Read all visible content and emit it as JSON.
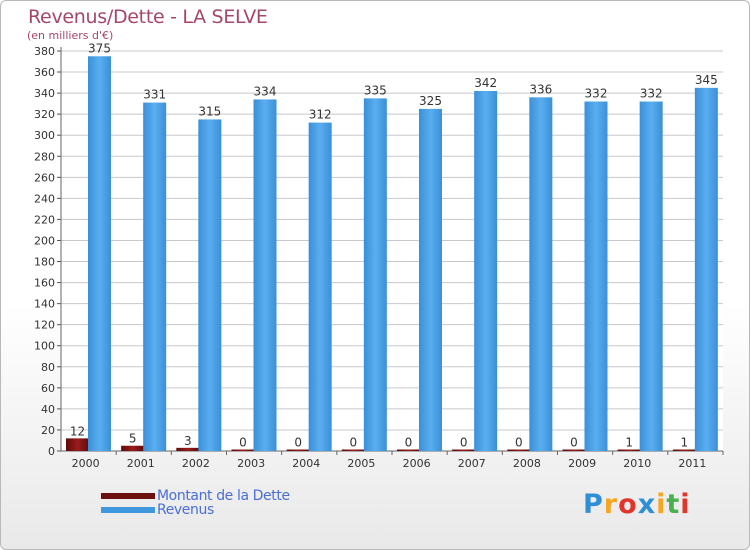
{
  "title": "Revenus/Dette - LA SELVE",
  "subtitle": "(en milliers d'€)",
  "chart_data": {
    "type": "bar",
    "categories": [
      "2000",
      "2001",
      "2002",
      "2003",
      "2004",
      "2005",
      "2006",
      "2007",
      "2008",
      "2009",
      "2010",
      "2011"
    ],
    "series": [
      {
        "name": "Montant de la Dette",
        "color": "#7a0f0f",
        "values": [
          12,
          5,
          3,
          0,
          0,
          0,
          0,
          0,
          0,
          0,
          1,
          1
        ]
      },
      {
        "name": "Revenus",
        "color": "#3f97de",
        "values": [
          375,
          331,
          315,
          334,
          312,
          335,
          325,
          342,
          336,
          332,
          332,
          345
        ]
      }
    ],
    "ylim": [
      0,
      380
    ],
    "ytick_step": 20,
    "grid": true,
    "legend_position": "bottom-left"
  },
  "legend": {
    "debt_label": "Montant de la Dette",
    "revenue_label": "Revenus"
  },
  "logo": {
    "text": "Proxiti",
    "letters": [
      "P",
      "r",
      "o",
      "x",
      "i",
      "t",
      "i"
    ],
    "colors": [
      "#2f8fd6",
      "#f5a623",
      "#e2342b",
      "#2f8fd6",
      "#f5a623",
      "#4caf50",
      "#e2342b"
    ]
  }
}
